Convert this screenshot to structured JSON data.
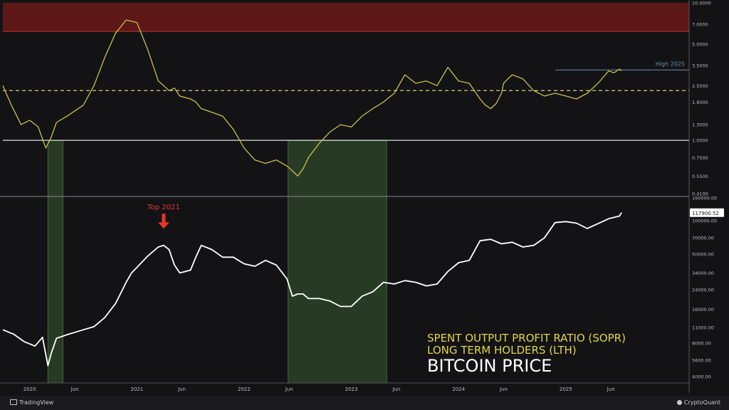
{
  "chart_data": {
    "type": "line",
    "panels": [
      {
        "name": "sopr",
        "scale": "log",
        "ylim": [
          0.4,
          10
        ],
        "y_ticks": [
          "10.0000",
          "7.0000",
          "5.0000",
          "3.5000",
          "2.5000",
          "1.9000",
          "1.3000",
          "1.0000",
          "0.7500",
          "0.5500",
          "0.4100"
        ],
        "y_tick_values": [
          10,
          7,
          5,
          3.5,
          2.5,
          1.9,
          1.3,
          1.0,
          0.75,
          0.55,
          0.41
        ],
        "series": [
          {
            "color": "#c7c14e",
            "x": [
              2019.75,
              2019.83,
              2019.92,
              2020.0,
              2020.08,
              2020.15,
              2020.2,
              2020.25,
              2020.35,
              2020.5,
              2020.6,
              2020.7,
              2020.8,
              2020.9,
              2021.0,
              2021.1,
              2021.2,
              2021.25,
              2021.3,
              2021.35,
              2021.4,
              2021.5,
              2021.55,
              2021.6,
              2021.7,
              2021.8,
              2021.9,
              2022.0,
              2022.1,
              2022.2,
              2022.3,
              2022.4,
              2022.45,
              2022.5,
              2022.55,
              2022.6,
              2022.7,
              2022.8,
              2022.9,
              2023.0,
              2023.1,
              2023.2,
              2023.3,
              2023.4,
              2023.5,
              2023.6,
              2023.7,
              2023.8,
              2023.9,
              2024.0,
              2024.1,
              2024.2,
              2024.25,
              2024.3,
              2024.35,
              2024.4,
              2024.42,
              2024.46,
              2024.5,
              2024.6,
              2024.7,
              2024.8,
              2024.9,
              2025.0,
              2025.1,
              2025.2,
              2025.3,
              2025.4,
              2025.45,
              2025.5,
              2025.52
            ],
            "y": [
              2.5,
              1.8,
              1.3,
              1.4,
              1.25,
              0.88,
              1.05,
              1.35,
              1.5,
              1.8,
              2.5,
              4.0,
              6.0,
              7.5,
              7.2,
              4.6,
              2.7,
              2.5,
              2.3,
              2.4,
              2.1,
              2.0,
              1.9,
              1.7,
              1.6,
              1.5,
              1.2,
              0.88,
              0.72,
              0.68,
              0.72,
              0.65,
              0.6,
              0.55,
              0.62,
              0.75,
              0.95,
              1.15,
              1.3,
              1.25,
              1.5,
              1.7,
              1.9,
              2.2,
              3.0,
              2.6,
              2.7,
              2.5,
              3.4,
              2.7,
              2.6,
              2.0,
              1.8,
              1.7,
              1.85,
              2.2,
              2.6,
              2.8,
              3.0,
              2.8,
              2.3,
              2.1,
              2.2,
              2.1,
              2.0,
              2.2,
              2.6,
              3.2,
              3.1,
              3.3,
              3.2
            ]
          }
        ],
        "reference_lines": [
          {
            "value": 1.0,
            "style": "solid",
            "color": "#e0e0e0"
          },
          {
            "value": 2.3,
            "style": "dashed",
            "color": "#d9d26a"
          },
          {
            "value": 3.25,
            "style": "short-solid",
            "color": "#6f8db3",
            "label": "High 2025"
          }
        ],
        "shaded_band": {
          "from": 6.2,
          "to": 10,
          "color": "#5e1717"
        }
      },
      {
        "name": "price",
        "scale": "log",
        "ylim": [
          3500,
          160000
        ],
        "y_ticks": [
          "160000.00",
          "100000.00",
          "70000.00",
          "50000.00",
          "34000.00",
          "24000.00",
          "16000.00",
          "11000.00",
          "8000.00",
          "5600.00",
          "4000.00"
        ],
        "y_tick_values": [
          160000,
          100000,
          70000,
          50000,
          34000,
          24000,
          16000,
          11000,
          8000,
          5600,
          4000
        ],
        "current_label": "117900.52",
        "current_value": 117900.52,
        "series": [
          {
            "color": "#ffffff",
            "x": [
              2019.75,
              2019.85,
              2019.95,
              2020.05,
              2020.12,
              2020.17,
              2020.2,
              2020.25,
              2020.35,
              2020.5,
              2020.6,
              2020.7,
              2020.8,
              2020.9,
              2020.95,
              2021.0,
              2021.1,
              2021.2,
              2021.25,
              2021.3,
              2021.35,
              2021.4,
              2021.5,
              2021.55,
              2021.6,
              2021.7,
              2021.8,
              2021.9,
              2022.0,
              2022.1,
              2022.2,
              2022.3,
              2022.4,
              2022.45,
              2022.5,
              2022.55,
              2022.6,
              2022.7,
              2022.8,
              2022.9,
              2023.0,
              2023.1,
              2023.2,
              2023.3,
              2023.4,
              2023.5,
              2023.6,
              2023.7,
              2023.8,
              2023.9,
              2024.0,
              2024.1,
              2024.2,
              2024.3,
              2024.4,
              2024.5,
              2024.6,
              2024.7,
              2024.8,
              2024.9,
              2025.0,
              2025.1,
              2025.2,
              2025.3,
              2025.4,
              2025.5,
              2025.52
            ],
            "y": [
              10500,
              9600,
              8200,
              7500,
              9000,
              5000,
              6400,
              8800,
              9500,
              10500,
              11200,
              13500,
              18000,
              28000,
              34000,
              38000,
              48000,
              58000,
              60000,
              55000,
              40000,
              34000,
              36000,
              47000,
              60000,
              55000,
              47000,
              47000,
              41000,
              39000,
              44000,
              40000,
              30000,
              21000,
              22000,
              22000,
              20000,
              20000,
              19000,
              17000,
              17000,
              21000,
              23000,
              28000,
              27000,
              29000,
              28000,
              26000,
              27000,
              35000,
              42000,
              44000,
              66000,
              68000,
              62000,
              64000,
              58000,
              60000,
              70000,
              96000,
              98000,
              95000,
              85000,
              94000,
              104000,
              110000,
              118000
            ]
          }
        ],
        "annotations": [
          {
            "text": "Top 2021",
            "x": 2021.25,
            "y": 70000,
            "color": "#e4362b"
          }
        ]
      }
    ],
    "x_ticks": [
      {
        "label": "2020",
        "x": 2020.0
      },
      {
        "label": "Jun",
        "x": 2020.42
      },
      {
        "label": "2021",
        "x": 2021.0
      },
      {
        "label": "Jun",
        "x": 2021.42
      },
      {
        "label": "2022",
        "x": 2022.0
      },
      {
        "label": "Jun",
        "x": 2022.42
      },
      {
        "label": "2023",
        "x": 2023.0
      },
      {
        "label": "Jun",
        "x": 2023.42
      },
      {
        "label": "2024",
        "x": 2024.0
      },
      {
        "label": "Jun",
        "x": 2024.42
      },
      {
        "label": "2025",
        "x": 2025.0
      },
      {
        "label": "Jun",
        "x": 2025.42
      }
    ],
    "xlim": [
      2019.75,
      2026.15
    ],
    "highlight_periods": [
      {
        "from": 2020.17,
        "to": 2020.31,
        "color": "#2f4a2a"
      },
      {
        "from": 2022.41,
        "to": 2023.33,
        "color": "#2f4a2a"
      }
    ],
    "legend": [
      {
        "text": "SPENT OUTPUT PROFIT RATIO (SOPR)",
        "color": "#dfd64a"
      },
      {
        "text": "LONG TERM HOLDERS (LTH)",
        "color": "#dfd64a"
      },
      {
        "text": "BITCOIN PRICE",
        "color": "#ffffff"
      }
    ],
    "legend_placement": "bottom-right",
    "grid": false
  },
  "footer": {
    "left_brand": "TradingView",
    "right_brand": "CryptoQuant"
  }
}
